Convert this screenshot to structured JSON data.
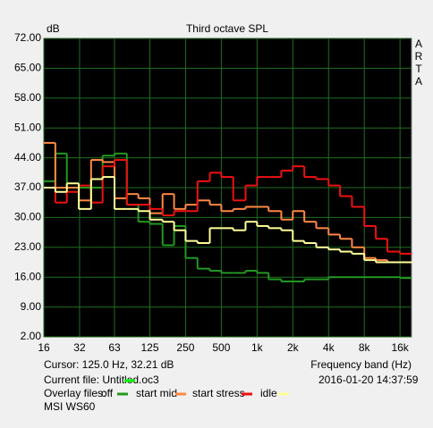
{
  "chart_data": {
    "type": "step",
    "title": "Third octave SPL",
    "y_label": "dB",
    "side_label": [
      "A",
      "R",
      "T",
      "A"
    ],
    "cursor": "Cursor:   125.0 Hz, 32.21 dB",
    "x_label": "Frequency band (Hz)",
    "current_file": "Current file: Untitled.oc3",
    "current_file_color": "#00ff00",
    "overlay_label": "Overlay files:",
    "timestamp": "2016-01-20   14:37:59",
    "device": "MSI WS60",
    "log_x": true,
    "grid": true,
    "xlim": [
      16,
      20000
    ],
    "ylim": [
      2,
      72
    ],
    "xticks": [
      16,
      32,
      63,
      125,
      250,
      500,
      {
        "value": 1000,
        "label": "1k"
      },
      {
        "value": 2000,
        "label": "2k"
      },
      {
        "value": 4000,
        "label": "4k"
      },
      {
        "value": 8000,
        "label": "8k"
      },
      {
        "value": 16000,
        "label": "16k"
      }
    ],
    "yticks": [
      {
        "value": 2,
        "label": "2.00"
      },
      {
        "value": 9,
        "label": "9.00"
      },
      {
        "value": 16,
        "label": "16.00"
      },
      {
        "value": 23,
        "label": "23.00"
      },
      {
        "value": 30,
        "label": "30.00"
      },
      {
        "value": 37,
        "label": "37.00"
      },
      {
        "value": 44,
        "label": "44.00"
      },
      {
        "value": 51,
        "label": "51.00"
      },
      {
        "value": 58,
        "label": "58.00"
      },
      {
        "value": 65,
        "label": "65.00"
      },
      {
        "value": 72,
        "label": "72.00"
      }
    ],
    "x": [
      16,
      20,
      25,
      31.5,
      40,
      50,
      63,
      80,
      100,
      125,
      160,
      200,
      250,
      315,
      400,
      500,
      630,
      800,
      1000,
      1250,
      1600,
      2000,
      2500,
      3150,
      4000,
      5000,
      6300,
      8000,
      10000,
      12500,
      16000
    ],
    "series": [
      {
        "name": "off",
        "color": "#229922",
        "values": [
          38.5,
          45,
          37,
          37,
          37,
          44.5,
          45,
          33,
          29,
          28.5,
          23.5,
          28,
          20.5,
          18,
          17.5,
          17,
          17,
          17.5,
          17,
          15.5,
          15,
          15,
          15.5,
          15.5,
          16,
          16,
          16,
          16,
          16,
          16,
          15.8
        ]
      },
      {
        "name": "start mid",
        "color": "#ff8844",
        "values": [
          47.5,
          37,
          37,
          34,
          43.5,
          43,
          34.5,
          35.5,
          34.5,
          31,
          35.5,
          32,
          33,
          34,
          33,
          31.5,
          32,
          32.5,
          32.5,
          31.5,
          29.5,
          31.5,
          29,
          27.5,
          26,
          25,
          23,
          20.5,
          20,
          19.5,
          19.5
        ]
      },
      {
        "name": "start stress",
        "color": "#ee1111",
        "values": [
          37,
          33.5,
          36,
          37.5,
          33.5,
          42,
          43.5,
          33,
          33,
          32,
          30.5,
          31.5,
          31.5,
          38.5,
          40.5,
          39.5,
          34,
          37.5,
          39.5,
          39.5,
          41,
          42,
          39.5,
          39,
          37.5,
          35,
          32.5,
          28,
          25,
          22,
          21.5
        ]
      },
      {
        "name": "idle",
        "color": "#ffff99",
        "values": [
          37,
          36,
          38,
          32,
          39,
          39.5,
          32,
          32,
          31.5,
          29.5,
          29,
          27,
          24.5,
          24,
          27.5,
          27.5,
          27,
          29,
          28,
          27.5,
          27,
          24.5,
          24,
          23,
          22.5,
          22,
          21.5,
          20,
          19.5,
          19.5,
          19.5
        ]
      }
    ]
  }
}
